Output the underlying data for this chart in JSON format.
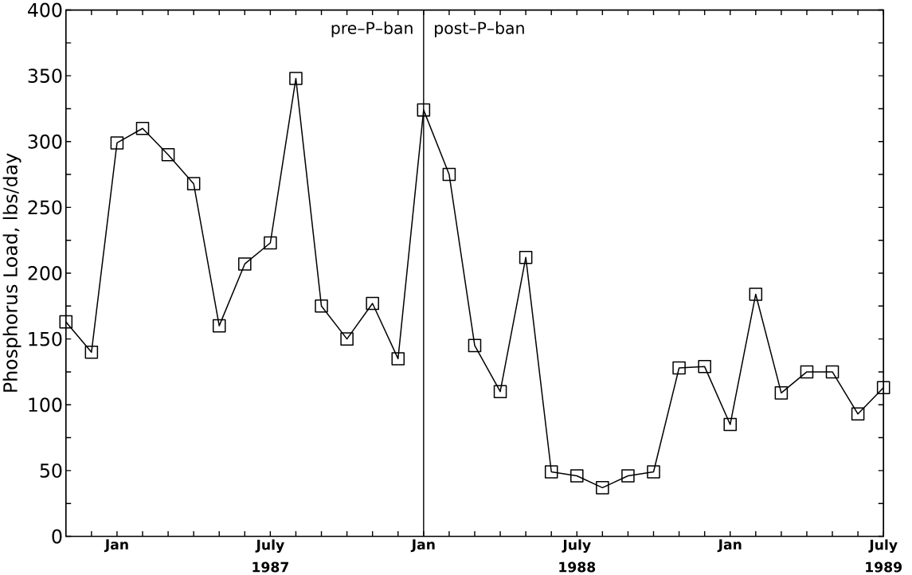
{
  "chart_data": {
    "type": "line",
    "ylabel": "Phosphorus Load, lbs/day",
    "x": [
      "1986-11",
      "1986-12",
      "1987-01",
      "1987-02",
      "1987-03",
      "1987-04",
      "1987-05",
      "1987-06",
      "1987-07",
      "1987-08",
      "1987-09",
      "1987-10",
      "1987-11",
      "1987-12",
      "1988-01",
      "1988-02",
      "1988-03",
      "1988-04",
      "1988-05",
      "1988-06",
      "1988-07",
      "1988-08",
      "1988-09",
      "1988-10",
      "1988-11",
      "1988-12",
      "1989-01",
      "1989-02",
      "1989-03",
      "1989-04",
      "1989-05",
      "1989-06",
      "1989-07"
    ],
    "values": [
      163,
      140,
      299,
      310,
      290,
      268,
      160,
      207,
      223,
      348,
      175,
      150,
      177,
      135,
      324,
      275,
      145,
      110,
      212,
      49,
      46,
      37,
      46,
      49,
      128,
      129,
      85,
      184,
      109,
      125,
      125,
      93,
      113
    ],
    "color": "#000000",
    "marker": "square",
    "line_style": "solid",
    "xlim": [
      "1986-11",
      "1989-07"
    ],
    "xticks": [
      {
        "value": "1986-12",
        "label": null
      },
      {
        "value": "1987-01",
        "label": "Jan"
      },
      {
        "value": "1987-02",
        "label": null
      },
      {
        "value": "1987-03",
        "label": null
      },
      {
        "value": "1987-04",
        "label": null
      },
      {
        "value": "1987-05",
        "label": null
      },
      {
        "value": "1987-06",
        "label": null
      },
      {
        "value": "1987-07",
        "label": "July 1987"
      },
      {
        "value": "1987-08",
        "label": null
      },
      {
        "value": "1987-09",
        "label": null
      },
      {
        "value": "1987-10",
        "label": null
      },
      {
        "value": "1987-11",
        "label": null
      },
      {
        "value": "1987-12",
        "label": null
      },
      {
        "value": "1988-01",
        "label": "Jan"
      },
      {
        "value": "1988-02",
        "label": null
      },
      {
        "value": "1988-03",
        "label": null
      },
      {
        "value": "1988-04",
        "label": null
      },
      {
        "value": "1988-05",
        "label": null
      },
      {
        "value": "1988-06",
        "label": null
      },
      {
        "value": "1988-07",
        "label": "July 1988"
      },
      {
        "value": "1988-08",
        "label": null
      },
      {
        "value": "1988-09",
        "label": null
      },
      {
        "value": "1988-10",
        "label": null
      },
      {
        "value": "1988-11",
        "label": null
      },
      {
        "value": "1988-12",
        "label": null
      },
      {
        "value": "1989-01",
        "label": "Jan"
      },
      {
        "value": "1989-02",
        "label": null
      },
      {
        "value": "1989-03",
        "label": null
      },
      {
        "value": "1989-04",
        "label": null
      },
      {
        "value": "1989-05",
        "label": null
      },
      {
        "value": "1989-06",
        "label": null
      },
      {
        "value": "1989-07",
        "label": "July 1989"
      }
    ],
    "ylim": [
      0,
      400
    ],
    "yticks": [
      0,
      {
        "value": 25,
        "label": null
      },
      50,
      {
        "value": 75,
        "label": null
      },
      100,
      {
        "value": 125,
        "label": null
      },
      150,
      {
        "value": 175,
        "label": null
      },
      200,
      {
        "value": 225,
        "label": null
      },
      250,
      {
        "value": 275,
        "label": null
      },
      300,
      {
        "value": 325,
        "label": null
      },
      350,
      {
        "value": 375,
        "label": null
      },
      400
    ],
    "ref_lines": [
      {
        "axis": "x",
        "value": "1988-01"
      }
    ],
    "annotations": [
      "pre–P–ban",
      "post–P–ban"
    ],
    "grid": false
  }
}
